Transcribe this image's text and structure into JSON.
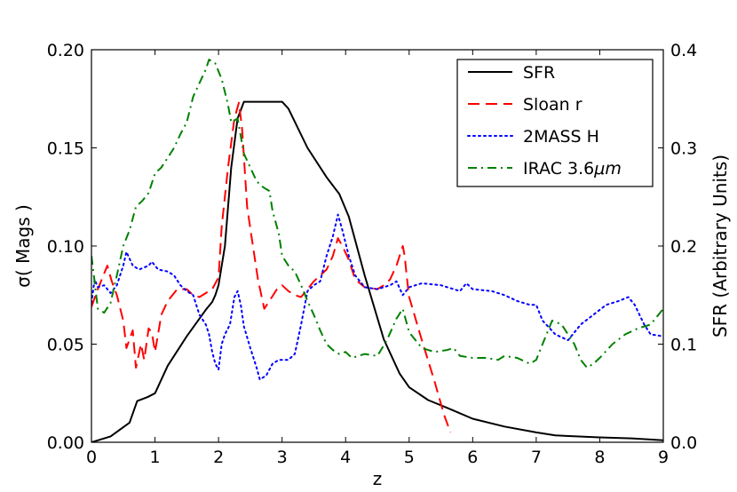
{
  "chart_data": {
    "type": "line",
    "title": "",
    "xlabel": "z",
    "ylabel_left": "σ( Mags )",
    "ylabel_right": "SFR (Arbitrary Units)",
    "xlim": [
      0,
      9
    ],
    "ylim_left": [
      0,
      0.2
    ],
    "ylim_right": [
      0,
      0.4
    ],
    "x_ticks": [
      0,
      1,
      2,
      3,
      4,
      5,
      6,
      7,
      8,
      9
    ],
    "x_tick_labels": [
      "0",
      "1",
      "2",
      "3",
      "4",
      "5",
      "6",
      "7",
      "8",
      "9"
    ],
    "y_left_ticks": [
      0,
      0.05,
      0.1,
      0.15,
      0.2
    ],
    "y_left_tick_labels": [
      "0.00",
      "0.05",
      "0.10",
      "0.15",
      "0.20"
    ],
    "y_right_ticks": [
      0,
      0.1,
      0.2,
      0.3,
      0.4
    ],
    "y_right_tick_labels": [
      "0.0",
      "0.1",
      "0.2",
      "0.3",
      "0.4"
    ],
    "grid": false,
    "legend_position": "top-right",
    "series": [
      {
        "name": "SFR",
        "label_main": "SFR",
        "label_sub": "",
        "axis": "right",
        "color": "#000000",
        "style": "solid",
        "points": [
          [
            0,
            0
          ],
          [
            0.1,
            0.002
          ],
          [
            0.3,
            0.006
          ],
          [
            0.6,
            0.02
          ],
          [
            0.72,
            0.042
          ],
          [
            0.88,
            0.046
          ],
          [
            1.0,
            0.05
          ],
          [
            1.2,
            0.078
          ],
          [
            1.5,
            0.108
          ],
          [
            1.8,
            0.135
          ],
          [
            1.9,
            0.143
          ],
          [
            1.95,
            0.15
          ],
          [
            2.0,
            0.16
          ],
          [
            2.1,
            0.2
          ],
          [
            2.2,
            0.28
          ],
          [
            2.3,
            0.33
          ],
          [
            2.4,
            0.347
          ],
          [
            3.0,
            0.347
          ],
          [
            3.1,
            0.34
          ],
          [
            3.4,
            0.3
          ],
          [
            3.7,
            0.27
          ],
          [
            3.9,
            0.253
          ],
          [
            4.05,
            0.23
          ],
          [
            4.3,
            0.17
          ],
          [
            4.6,
            0.105
          ],
          [
            4.85,
            0.07
          ],
          [
            5.0,
            0.056
          ],
          [
            5.3,
            0.043
          ],
          [
            5.6,
            0.035
          ],
          [
            6.0,
            0.024
          ],
          [
            6.5,
            0.016
          ],
          [
            7.0,
            0.01
          ],
          [
            7.3,
            0.007
          ],
          [
            8.0,
            0.005
          ],
          [
            8.5,
            0.004
          ],
          [
            9.0,
            0.002
          ]
        ]
      },
      {
        "name": "Sloan r",
        "label_main": "Sloan r",
        "label_sub": "",
        "axis": "left",
        "color": "#ff0000",
        "style": "dashed",
        "points": [
          [
            0,
            0.069
          ],
          [
            0.1,
            0.078
          ],
          [
            0.2,
            0.086
          ],
          [
            0.25,
            0.09
          ],
          [
            0.32,
            0.082
          ],
          [
            0.4,
            0.075
          ],
          [
            0.5,
            0.062
          ],
          [
            0.55,
            0.048
          ],
          [
            0.65,
            0.057
          ],
          [
            0.7,
            0.038
          ],
          [
            0.78,
            0.05
          ],
          [
            0.83,
            0.042
          ],
          [
            0.9,
            0.058
          ],
          [
            0.95,
            0.056
          ],
          [
            1.0,
            0.046
          ],
          [
            1.1,
            0.065
          ],
          [
            1.2,
            0.072
          ],
          [
            1.35,
            0.078
          ],
          [
            1.5,
            0.078
          ],
          [
            1.6,
            0.075
          ],
          [
            1.7,
            0.074
          ],
          [
            1.8,
            0.076
          ],
          [
            1.9,
            0.078
          ],
          [
            2.0,
            0.084
          ],
          [
            2.05,
            0.11
          ],
          [
            2.15,
            0.14
          ],
          [
            2.25,
            0.165
          ],
          [
            2.32,
            0.173
          ],
          [
            2.37,
            0.16
          ],
          [
            2.45,
            0.12
          ],
          [
            2.55,
            0.098
          ],
          [
            2.62,
            0.083
          ],
          [
            2.72,
            0.068
          ],
          [
            2.8,
            0.072
          ],
          [
            2.92,
            0.078
          ],
          [
            3.0,
            0.08
          ],
          [
            3.1,
            0.077
          ],
          [
            3.2,
            0.075
          ],
          [
            3.3,
            0.074
          ],
          [
            3.4,
            0.078
          ],
          [
            3.5,
            0.082
          ],
          [
            3.6,
            0.085
          ],
          [
            3.7,
            0.088
          ],
          [
            3.8,
            0.095
          ],
          [
            3.88,
            0.104
          ],
          [
            3.95,
            0.1
          ],
          [
            4.05,
            0.093
          ],
          [
            4.15,
            0.083
          ],
          [
            4.3,
            0.079
          ],
          [
            4.5,
            0.078
          ],
          [
            4.6,
            0.08
          ],
          [
            4.7,
            0.083
          ],
          [
            4.8,
            0.09
          ],
          [
            4.9,
            0.1
          ],
          [
            4.93,
            0.095
          ],
          [
            4.96,
            0.085
          ],
          [
            5.0,
            0.074
          ],
          [
            5.2,
            0.052
          ],
          [
            5.4,
            0.031
          ],
          [
            5.55,
            0.014
          ],
          [
            5.65,
            0.005
          ]
        ]
      },
      {
        "name": "2MASS H",
        "label_main": "2MASS H",
        "label_sub": "",
        "axis": "left",
        "color": "#0000ff",
        "style": "dotted",
        "points": [
          [
            0,
            0.071
          ],
          [
            0.05,
            0.083
          ],
          [
            0.1,
            0.079
          ],
          [
            0.2,
            0.08
          ],
          [
            0.3,
            0.076
          ],
          [
            0.4,
            0.08
          ],
          [
            0.5,
            0.09
          ],
          [
            0.55,
            0.097
          ],
          [
            0.65,
            0.09
          ],
          [
            0.75,
            0.088
          ],
          [
            0.9,
            0.09
          ],
          [
            0.95,
            0.092
          ],
          [
            1.0,
            0.09
          ],
          [
            1.05,
            0.088
          ],
          [
            1.2,
            0.087
          ],
          [
            1.3,
            0.085
          ],
          [
            1.4,
            0.08
          ],
          [
            1.5,
            0.077
          ],
          [
            1.6,
            0.075
          ],
          [
            1.7,
            0.065
          ],
          [
            1.8,
            0.06
          ],
          [
            1.85,
            0.055
          ],
          [
            1.9,
            0.046
          ],
          [
            1.95,
            0.04
          ],
          [
            2.0,
            0.037
          ],
          [
            2.05,
            0.05
          ],
          [
            2.1,
            0.055
          ],
          [
            2.18,
            0.06
          ],
          [
            2.25,
            0.074
          ],
          [
            2.3,
            0.077
          ],
          [
            2.35,
            0.07
          ],
          [
            2.4,
            0.059
          ],
          [
            2.5,
            0.048
          ],
          [
            2.6,
            0.038
          ],
          [
            2.65,
            0.032
          ],
          [
            2.75,
            0.034
          ],
          [
            2.85,
            0.04
          ],
          [
            2.95,
            0.042
          ],
          [
            3.1,
            0.042
          ],
          [
            3.2,
            0.045
          ],
          [
            3.3,
            0.06
          ],
          [
            3.4,
            0.077
          ],
          [
            3.5,
            0.08
          ],
          [
            3.6,
            0.082
          ],
          [
            3.7,
            0.095
          ],
          [
            3.8,
            0.105
          ],
          [
            3.88,
            0.116
          ],
          [
            3.95,
            0.108
          ],
          [
            4.05,
            0.095
          ],
          [
            4.15,
            0.085
          ],
          [
            4.3,
            0.079
          ],
          [
            4.5,
            0.078
          ],
          [
            4.7,
            0.08
          ],
          [
            4.8,
            0.082
          ],
          [
            4.9,
            0.075
          ],
          [
            5.0,
            0.079
          ],
          [
            5.2,
            0.081
          ],
          [
            5.5,
            0.08
          ],
          [
            5.8,
            0.077
          ],
          [
            5.9,
            0.081
          ],
          [
            6.0,
            0.078
          ],
          [
            6.3,
            0.077
          ],
          [
            6.5,
            0.075
          ],
          [
            6.7,
            0.072
          ],
          [
            6.9,
            0.07
          ],
          [
            7.0,
            0.07
          ],
          [
            7.1,
            0.062
          ],
          [
            7.3,
            0.055
          ],
          [
            7.5,
            0.052
          ],
          [
            7.7,
            0.06
          ],
          [
            7.9,
            0.065
          ],
          [
            8.1,
            0.07
          ],
          [
            8.3,
            0.072
          ],
          [
            8.45,
            0.074
          ],
          [
            8.55,
            0.07
          ],
          [
            8.7,
            0.06
          ],
          [
            8.8,
            0.055
          ],
          [
            9.0,
            0.054
          ]
        ]
      },
      {
        "name": "IRAC 3.6μm",
        "label_main": "IRAC 3.6",
        "label_sub": "μm",
        "axis": "left",
        "color": "#008000",
        "style": "dashdot",
        "points": [
          [
            0,
            0.095
          ],
          [
            0.1,
            0.068
          ],
          [
            0.2,
            0.066
          ],
          [
            0.3,
            0.071
          ],
          [
            0.4,
            0.085
          ],
          [
            0.5,
            0.1
          ],
          [
            0.6,
            0.108
          ],
          [
            0.7,
            0.12
          ],
          [
            0.8,
            0.123
          ],
          [
            0.9,
            0.127
          ],
          [
            1.0,
            0.137
          ],
          [
            1.1,
            0.14
          ],
          [
            1.2,
            0.145
          ],
          [
            1.3,
            0.15
          ],
          [
            1.4,
            0.157
          ],
          [
            1.5,
            0.163
          ],
          [
            1.6,
            0.176
          ],
          [
            1.7,
            0.183
          ],
          [
            1.8,
            0.19
          ],
          [
            1.85,
            0.195
          ],
          [
            1.95,
            0.193
          ],
          [
            2.05,
            0.185
          ],
          [
            2.15,
            0.172
          ],
          [
            2.2,
            0.163
          ],
          [
            2.3,
            0.165
          ],
          [
            2.4,
            0.147
          ],
          [
            2.5,
            0.14
          ],
          [
            2.6,
            0.133
          ],
          [
            2.7,
            0.13
          ],
          [
            2.8,
            0.128
          ],
          [
            2.85,
            0.118
          ],
          [
            2.95,
            0.106
          ],
          [
            3.0,
            0.095
          ],
          [
            3.1,
            0.09
          ],
          [
            3.2,
            0.087
          ],
          [
            3.3,
            0.08
          ],
          [
            3.4,
            0.072
          ],
          [
            3.5,
            0.065
          ],
          [
            3.6,
            0.057
          ],
          [
            3.7,
            0.05
          ],
          [
            3.8,
            0.047
          ],
          [
            3.9,
            0.045
          ],
          [
            4.0,
            0.046
          ],
          [
            4.1,
            0.043
          ],
          [
            4.3,
            0.045
          ],
          [
            4.5,
            0.044
          ],
          [
            4.65,
            0.052
          ],
          [
            4.8,
            0.063
          ],
          [
            4.9,
            0.068
          ],
          [
            5.0,
            0.056
          ],
          [
            5.2,
            0.048
          ],
          [
            5.4,
            0.046
          ],
          [
            5.6,
            0.047
          ],
          [
            5.7,
            0.048
          ],
          [
            5.8,
            0.044
          ],
          [
            6.0,
            0.043
          ],
          [
            6.2,
            0.043
          ],
          [
            6.4,
            0.042
          ],
          [
            6.5,
            0.044
          ],
          [
            6.7,
            0.043
          ],
          [
            6.9,
            0.04
          ],
          [
            7.0,
            0.042
          ],
          [
            7.1,
            0.05
          ],
          [
            7.25,
            0.062
          ],
          [
            7.4,
            0.06
          ],
          [
            7.6,
            0.05
          ],
          [
            7.7,
            0.042
          ],
          [
            7.8,
            0.038
          ],
          [
            7.9,
            0.04
          ],
          [
            8.0,
            0.043
          ],
          [
            8.2,
            0.05
          ],
          [
            8.4,
            0.055
          ],
          [
            8.6,
            0.058
          ],
          [
            8.8,
            0.06
          ],
          [
            9.0,
            0.068
          ]
        ]
      }
    ]
  }
}
